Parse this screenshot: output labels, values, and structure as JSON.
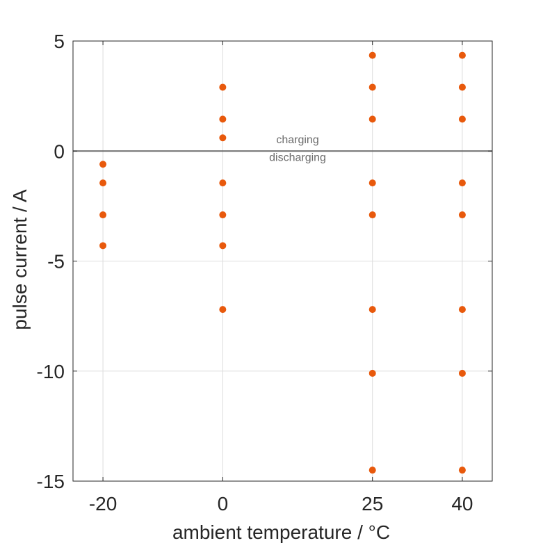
{
  "chart_data": {
    "type": "scatter",
    "xlabel": "ambient temperature / °C",
    "ylabel": "pulse current / A",
    "x_ticks": [
      -20,
      0,
      25,
      40
    ],
    "x_tick_labels": [
      "-20",
      "0",
      "25",
      "40"
    ],
    "y_ticks": [
      5,
      0,
      -5,
      -10,
      -15
    ],
    "y_tick_labels": [
      "5",
      "0",
      "-5",
      "-10",
      "-15"
    ],
    "xlim": [
      -25,
      45
    ],
    "ylim": [
      -15,
      5
    ],
    "grid": true,
    "reference_line": {
      "y": 0,
      "color": "#6b6b6b"
    },
    "annotations": [
      {
        "text": "charging",
        "x": 12.5,
        "y": 0.35
      },
      {
        "text": "discharging",
        "x": 12.5,
        "y": -0.45
      }
    ],
    "marker_color": "#e8590c",
    "series": [
      {
        "points": [
          [
            -20,
            -0.6
          ],
          [
            -20,
            -1.45
          ],
          [
            -20,
            -2.9
          ],
          [
            -20,
            -4.3
          ],
          [
            0,
            2.9
          ],
          [
            0,
            1.45
          ],
          [
            0,
            0.6
          ],
          [
            0,
            -1.45
          ],
          [
            0,
            -2.9
          ],
          [
            0,
            -4.3
          ],
          [
            0,
            -7.2
          ],
          [
            25,
            4.35
          ],
          [
            25,
            2.9
          ],
          [
            25,
            1.45
          ],
          [
            25,
            -1.45
          ],
          [
            25,
            -2.9
          ],
          [
            25,
            -7.2
          ],
          [
            25,
            -10.1
          ],
          [
            25,
            -14.5
          ],
          [
            40,
            4.35
          ],
          [
            40,
            2.9
          ],
          [
            40,
            1.45
          ],
          [
            40,
            -1.45
          ],
          [
            40,
            -2.9
          ],
          [
            40,
            -7.2
          ],
          [
            40,
            -10.1
          ],
          [
            40,
            -14.5
          ]
        ]
      }
    ]
  }
}
